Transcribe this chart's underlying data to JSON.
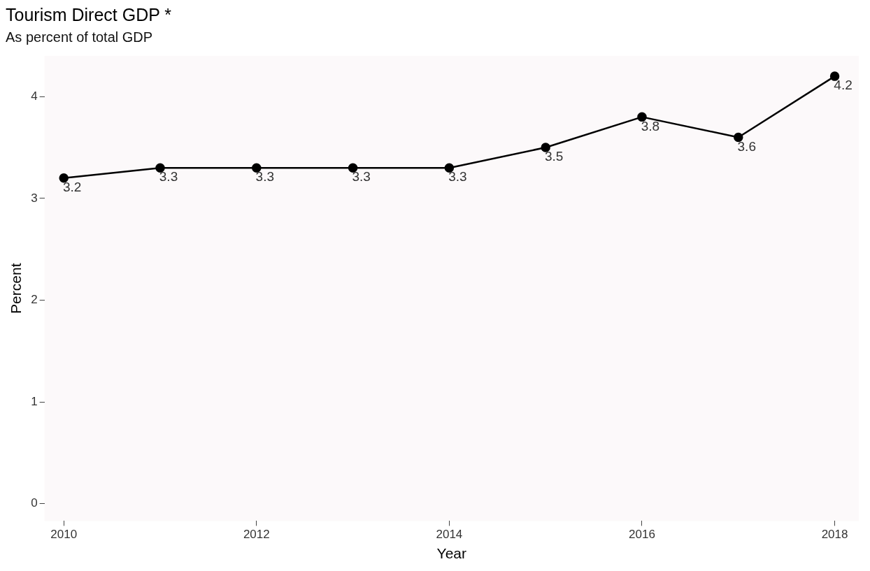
{
  "chart_data": {
    "type": "line",
    "title": "Tourism Direct GDP *",
    "subtitle": "As percent of total GDP",
    "xlabel": "Year",
    "ylabel": "Percent",
    "x": [
      2010,
      2011,
      2012,
      2013,
      2014,
      2015,
      2016,
      2017,
      2018
    ],
    "series": [
      {
        "color": "#000000",
        "values": [
          3.2,
          3.3,
          3.3,
          3.3,
          3.3,
          3.5,
          3.8,
          3.6,
          4.2
        ]
      }
    ],
    "xlim": [
      2009.8,
      2018.25
    ],
    "xticks": [
      2010,
      2012,
      2014,
      2016,
      2018
    ],
    "ylim": [
      -0.17,
      4.4
    ],
    "yticks": [
      0,
      1,
      2,
      3,
      4
    ],
    "grid": false,
    "legend": false,
    "marker": "circle",
    "line_style": "solid",
    "data_labels": true
  }
}
